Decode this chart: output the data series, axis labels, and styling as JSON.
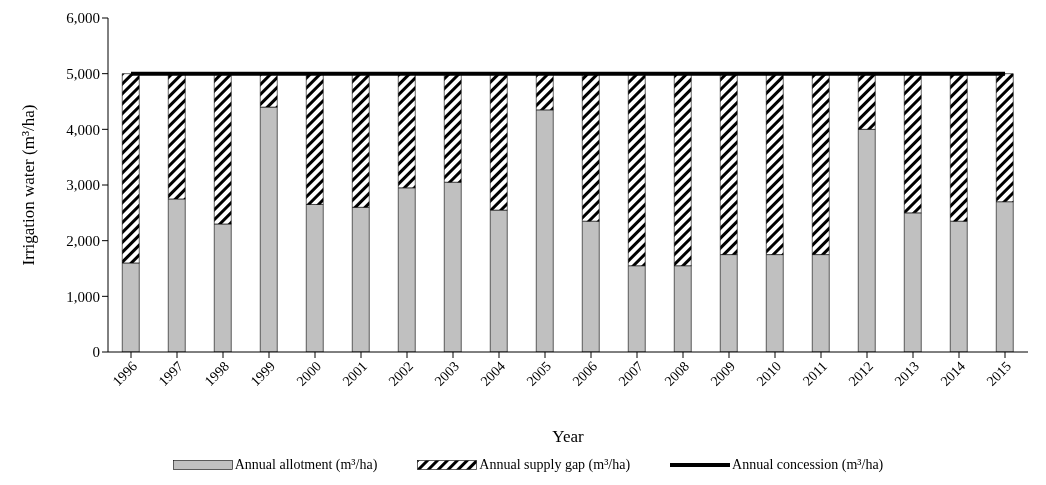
{
  "chart_data": {
    "type": "bar",
    "stacked": true,
    "xlabel": "Year",
    "ylabel": "Irrigation water (m³/ha)",
    "categories": [
      "1996",
      "1997",
      "1998",
      "1999",
      "2000",
      "2001",
      "2002",
      "2003",
      "2004",
      "2005",
      "2006",
      "2007",
      "2008",
      "2009",
      "2010",
      "2011",
      "2012",
      "2013",
      "2014",
      "2015"
    ],
    "series": [
      {
        "name": "Annual allotment (m³/ha)",
        "color": "#c0c0c0",
        "values": [
          1600,
          2750,
          2300,
          4400,
          2650,
          2600,
          2950,
          3050,
          2550,
          4350,
          2350,
          1550,
          1550,
          1750,
          1750,
          1750,
          4000,
          2500,
          2350,
          2700
        ]
      },
      {
        "name": "Annual supply gap (m³/ha)",
        "color": "#000000",
        "values": [
          3400,
          2250,
          2700,
          600,
          2350,
          2400,
          2050,
          1950,
          2450,
          650,
          2650,
          3450,
          3450,
          3250,
          3250,
          3250,
          1000,
          2500,
          2650,
          2300
        ]
      },
      {
        "name": "Annual concession (m³/ha)",
        "type": "line",
        "color": "#000000",
        "values": [
          5000,
          5000,
          5000,
          5000,
          5000,
          5000,
          5000,
          5000,
          5000,
          5000,
          5000,
          5000,
          5000,
          5000,
          5000,
          5000,
          5000,
          5000,
          5000,
          5000
        ]
      }
    ],
    "ylim": [
      0,
      6000
    ],
    "yticks": [
      0,
      {
        "value": 1000,
        "label": "1,000"
      },
      {
        "value": 2000,
        "label": "2,000"
      },
      {
        "value": 3000,
        "label": "3,000"
      },
      {
        "value": 4000,
        "label": "4,000"
      },
      {
        "value": 5000,
        "label": "5,000"
      },
      {
        "value": 6000,
        "label": "6,000"
      }
    ],
    "grid": false,
    "legend": "bottom",
    "marker": "none"
  }
}
